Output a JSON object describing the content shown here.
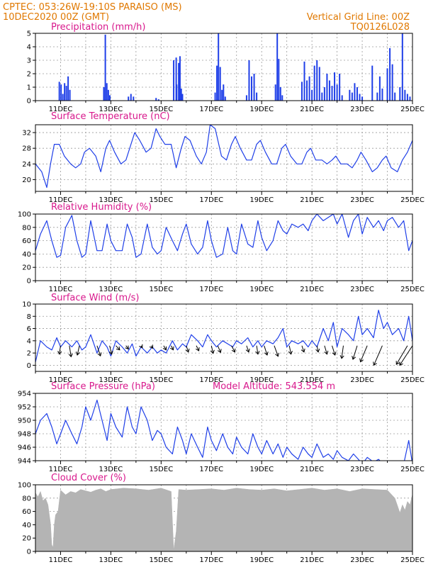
{
  "header": {
    "line1_left": "CPTEC:   053:26W-19:10S   PARAISO (MS)",
    "line2_left": "10DEC2020 00Z (GMT)",
    "line1_right": "Vertical Grid Line: 00Z",
    "line2_right": "TQ0126L028"
  },
  "colors": {
    "header": "#e07800",
    "title": "#d8188c",
    "series": "#1f3fe8",
    "cloud": "#b4b4b4"
  },
  "x_axis": {
    "labels": [
      "11DEC",
      "13DEC",
      "15DEC",
      "17DEC",
      "19DEC",
      "21DEC",
      "23DEC",
      "25DEC"
    ],
    "label_days": [
      11,
      13,
      15,
      17,
      19,
      21,
      23,
      25
    ],
    "range_days": [
      10,
      25
    ]
  },
  "chart_data": [
    {
      "id": "precip",
      "type": "bar",
      "title": "Precipitation (mm/h)",
      "ylim": [
        0,
        5
      ],
      "yticks": [
        0,
        1,
        2,
        3,
        4,
        5
      ],
      "x": [
        10.95,
        11.02,
        11.09,
        11.16,
        11.23,
        11.3,
        11.37,
        12.72,
        12.78,
        12.84,
        12.9,
        12.96,
        13.7,
        13.8,
        13.9,
        14.8,
        14.9,
        15.5,
        15.6,
        15.62,
        15.7,
        15.75,
        15.8,
        15.85,
        17.15,
        17.22,
        17.28,
        17.35,
        17.42,
        17.48,
        17.55,
        18.4,
        18.5,
        18.6,
        18.7,
        18.8,
        19.55,
        19.62,
        19.68,
        19.75,
        19.82,
        20.6,
        20.7,
        20.8,
        20.9,
        21.0,
        21.1,
        21.2,
        21.3,
        21.4,
        21.5,
        21.6,
        21.7,
        21.8,
        21.9,
        22.0,
        22.1,
        22.2,
        22.5,
        22.6,
        22.7,
        22.8,
        22.9,
        23.0,
        23.4,
        23.6,
        23.7,
        23.8,
        24.0,
        24.1,
        24.2,
        24.3,
        24.5,
        24.6,
        24.7,
        24.8,
        24.9
      ],
      "values": [
        1.4,
        1.2,
        0.5,
        1.3,
        1.1,
        1.8,
        0.8,
        1.0,
        4.9,
        1.3,
        0.8,
        0.4,
        0.3,
        0.5,
        0.3,
        0.2,
        0.1,
        3.0,
        3.2,
        1.2,
        2.8,
        3.3,
        0.9,
        0.5,
        0.6,
        2.6,
        5.0,
        2.5,
        0.8,
        1.2,
        0.3,
        0.4,
        3.0,
        1.8,
        2.0,
        0.6,
        1.2,
        5.0,
        3.1,
        1.0,
        0.4,
        1.4,
        2.9,
        1.5,
        1.8,
        0.8,
        2.6,
        3.0,
        2.5,
        0.6,
        1.0,
        2.0,
        1.5,
        1.1,
        2.1,
        1.2,
        2.0,
        0.4,
        0.8,
        0.6,
        1.3,
        1.0,
        0.5,
        0.3,
        2.6,
        0.6,
        1.8,
        0.9,
        2.4,
        3.9,
        2.7,
        0.6,
        1.0,
        5.0,
        0.8,
        0.5,
        0.3
      ]
    },
    {
      "id": "temp",
      "type": "line",
      "title": "Surface Temperature (nC)",
      "ylim": [
        17,
        34
      ],
      "yticks": [
        20,
        24,
        28,
        32
      ],
      "x": [
        10,
        10.25,
        10.45,
        10.6,
        10.75,
        10.95,
        11.15,
        11.4,
        11.6,
        11.8,
        11.95,
        12.15,
        12.4,
        12.6,
        12.8,
        12.95,
        13.15,
        13.4,
        13.6,
        13.8,
        13.95,
        14.15,
        14.4,
        14.6,
        14.8,
        14.95,
        15.15,
        15.4,
        15.6,
        15.8,
        15.95,
        16.15,
        16.4,
        16.6,
        16.8,
        16.95,
        17.15,
        17.4,
        17.6,
        17.8,
        17.95,
        18.15,
        18.4,
        18.6,
        18.8,
        18.95,
        19.15,
        19.4,
        19.6,
        19.8,
        19.95,
        20.15,
        20.4,
        20.6,
        20.8,
        20.95,
        21.15,
        21.4,
        21.6,
        21.8,
        21.95,
        22.15,
        22.4,
        22.6,
        22.8,
        22.95,
        23.15,
        23.4,
        23.6,
        23.8,
        23.95,
        24.15,
        24.4,
        24.6,
        24.8,
        25
      ],
      "values": [
        24,
        22,
        18,
        24,
        29,
        29,
        26,
        24,
        23,
        24,
        27,
        28,
        26,
        22,
        28,
        30,
        27,
        24,
        25,
        29,
        32,
        30,
        27,
        28,
        33,
        31,
        29,
        29,
        23,
        28,
        31,
        30,
        26,
        24,
        27,
        34,
        33,
        26,
        25,
        29,
        31,
        28,
        25,
        25,
        29,
        30,
        27,
        24,
        24,
        28,
        29,
        26,
        24,
        24,
        27,
        28,
        25,
        25,
        24,
        25,
        26,
        24,
        24,
        23,
        25,
        27,
        25,
        22,
        23,
        25,
        26,
        23,
        22,
        25,
        27,
        30
      ]
    },
    {
      "id": "rh",
      "type": "line",
      "title": "Relative Humidity (%)",
      "ylim": [
        0,
        100
      ],
      "yticks": [
        0,
        20,
        40,
        60,
        80,
        100
      ],
      "x": [
        10,
        10.2,
        10.45,
        10.65,
        10.85,
        11,
        11.2,
        11.45,
        11.65,
        11.85,
        12,
        12.2,
        12.45,
        12.65,
        12.85,
        13,
        13.2,
        13.45,
        13.65,
        13.85,
        14,
        14.2,
        14.45,
        14.65,
        14.85,
        15,
        15.2,
        15.45,
        15.65,
        15.85,
        16,
        16.2,
        16.45,
        16.65,
        16.85,
        17,
        17.2,
        17.45,
        17.65,
        17.85,
        18,
        18.2,
        18.45,
        18.65,
        18.85,
        19,
        19.2,
        19.45,
        19.65,
        19.85,
        20,
        20.2,
        20.45,
        20.65,
        20.85,
        21,
        21.2,
        21.45,
        21.65,
        21.85,
        22,
        22.2,
        22.45,
        22.65,
        22.85,
        23,
        23.2,
        23.45,
        23.65,
        23.85,
        24,
        24.2,
        24.45,
        24.65,
        24.85,
        25
      ],
      "values": [
        45,
        70,
        90,
        60,
        35,
        38,
        80,
        98,
        60,
        35,
        40,
        90,
        45,
        45,
        85,
        60,
        45,
        45,
        85,
        65,
        35,
        40,
        85,
        50,
        40,
        45,
        80,
        60,
        45,
        70,
        85,
        55,
        40,
        50,
        90,
        60,
        35,
        40,
        80,
        45,
        40,
        85,
        55,
        50,
        90,
        65,
        45,
        60,
        90,
        75,
        70,
        85,
        80,
        85,
        75,
        90,
        100,
        90,
        95,
        100,
        85,
        100,
        65,
        90,
        100,
        70,
        95,
        80,
        90,
        75,
        90,
        95,
        80,
        90,
        45,
        60
      ]
    },
    {
      "id": "wind",
      "type": "line",
      "title": "Surface Wind (m/s)",
      "ylim": [
        -1,
        10
      ],
      "yticks": [
        0,
        2,
        4,
        6,
        8,
        10
      ],
      "x": [
        10,
        10.2,
        10.45,
        10.65,
        10.85,
        11,
        11.2,
        11.45,
        11.65,
        11.85,
        12,
        12.2,
        12.45,
        12.65,
        12.85,
        13,
        13.2,
        13.45,
        13.65,
        13.85,
        14,
        14.2,
        14.45,
        14.65,
        14.85,
        15,
        15.2,
        15.45,
        15.65,
        15.85,
        16,
        16.2,
        16.45,
        16.65,
        16.85,
        17,
        17.2,
        17.45,
        17.65,
        17.85,
        18,
        18.2,
        18.45,
        18.65,
        18.85,
        19,
        19.2,
        19.45,
        19.65,
        19.85,
        20,
        20.2,
        20.45,
        20.65,
        20.85,
        21,
        21.2,
        21.45,
        21.65,
        21.85,
        22,
        22.2,
        22.45,
        22.65,
        22.85,
        23,
        23.2,
        23.45,
        23.65,
        23.85,
        24,
        24.2,
        24.45,
        24.65,
        24.85,
        25
      ],
      "values": [
        0.5,
        4,
        3,
        2.5,
        4.5,
        3,
        4,
        3,
        4,
        2.5,
        3,
        5,
        2,
        4,
        3,
        1.5,
        4,
        3,
        2,
        3.5,
        1.5,
        3,
        2,
        3,
        2,
        2.5,
        2,
        4,
        2.5,
        3.5,
        3,
        5,
        4,
        3,
        5,
        4,
        3,
        4,
        3.5,
        3,
        4,
        3.5,
        4.5,
        3,
        4,
        3,
        4,
        3.5,
        4.5,
        6,
        3,
        4,
        3.5,
        4,
        3,
        4,
        3,
        6,
        4,
        7,
        3,
        6,
        5,
        4,
        8,
        5,
        6,
        4.5,
        9,
        6,
        7,
        5,
        6,
        4,
        8,
        4
      ]
    },
    {
      "id": "pres",
      "type": "line",
      "title": "Surface Pressure (hPa)",
      "note": "Model Altitude: 543.554  m",
      "ylim": [
        944,
        954
      ],
      "yticks": [
        944,
        946,
        948,
        950,
        952,
        954
      ],
      "x": [
        10,
        10.2,
        10.45,
        10.65,
        10.85,
        11,
        11.2,
        11.45,
        11.65,
        11.85,
        12,
        12.2,
        12.45,
        12.65,
        12.85,
        13,
        13.2,
        13.45,
        13.65,
        13.85,
        14,
        14.2,
        14.45,
        14.65,
        14.85,
        15,
        15.2,
        15.45,
        15.65,
        15.85,
        16,
        16.2,
        16.45,
        16.65,
        16.85,
        17,
        17.2,
        17.45,
        17.65,
        17.85,
        18,
        18.2,
        18.45,
        18.65,
        18.85,
        19,
        19.2,
        19.45,
        19.65,
        19.85,
        20,
        20.2,
        20.45,
        20.65,
        20.85,
        21,
        21.2,
        21.45,
        21.65,
        21.85,
        22,
        22.2,
        22.45,
        22.65,
        22.85,
        23,
        23.2,
        23.45,
        23.65,
        23.85,
        24,
        24.2,
        24.45,
        24.65,
        24.85,
        25
      ],
      "values": [
        948,
        950,
        951,
        949,
        946.5,
        948,
        950,
        948,
        946.5,
        949,
        952,
        950,
        953,
        950,
        947,
        951,
        949,
        947.5,
        952,
        949,
        948,
        952,
        950,
        947,
        948.5,
        948,
        946,
        945,
        949,
        947,
        945,
        948,
        946,
        944.5,
        949,
        947,
        945.5,
        948,
        946,
        945,
        947.5,
        946,
        945,
        948,
        946,
        945,
        947,
        945,
        946.5,
        944.5,
        946,
        945,
        944.2,
        946,
        945,
        944.5,
        946.5,
        944.5,
        945,
        944.2,
        945.5,
        944.5,
        944,
        945,
        944.2,
        943.5,
        944.5,
        943.8,
        944.2,
        943.5,
        944,
        943.5,
        943.8,
        943.5,
        947,
        943.5
      ]
    },
    {
      "id": "cloud",
      "type": "bar",
      "title": "Cloud Cover (%)",
      "ylim": [
        0,
        100
      ],
      "yticks": [
        0,
        20,
        40,
        60,
        80,
        100
      ],
      "x": [
        10,
        10.1,
        10.2,
        10.3,
        10.4,
        10.5,
        10.6,
        10.65,
        10.7,
        10.75,
        10.8,
        10.9,
        11,
        11.2,
        11.4,
        11.6,
        11.8,
        12,
        12.2,
        12.4,
        12.6,
        12.8,
        13,
        13.5,
        14,
        14.5,
        15,
        15.4,
        15.5,
        15.6,
        15.7,
        16,
        16.5,
        17,
        17.5,
        18,
        18.5,
        19,
        19.5,
        20,
        20.5,
        21,
        21.5,
        22,
        22.5,
        23,
        23.5,
        24,
        24.3,
        24.5,
        24.6,
        24.7,
        24.8,
        24.9,
        25
      ],
      "values": [
        88,
        82,
        90,
        76,
        80,
        70,
        42,
        10,
        6,
        40,
        55,
        60,
        92,
        85,
        90,
        88,
        93,
        91,
        89,
        92,
        94,
        90,
        93,
        95,
        94,
        92,
        95,
        90,
        2,
        30,
        93,
        92,
        93,
        94,
        92,
        95,
        93,
        92,
        94,
        91,
        93,
        95,
        92,
        94,
        90,
        94,
        93,
        92,
        80,
        58,
        70,
        62,
        75,
        70,
        86
      ]
    }
  ],
  "wind_vectors": {
    "x": [
      11.0,
      11.35,
      11.75,
      12.45,
      12.95,
      13.2,
      13.6,
      14.2,
      14.6,
      15.1,
      15.4,
      16.0,
      16.4,
      17.0,
      17.25,
      17.8,
      18.4,
      18.8,
      19.1,
      19.5,
      20.1,
      20.6,
      21.2,
      21.5,
      21.8,
      22.25,
      22.8,
      23.2,
      23.8,
      24.8,
      25.0
    ],
    "u": [
      -0.3,
      0.4,
      -0.5,
      0.8,
      0.5,
      0.9,
      0.6,
      0.3,
      0.4,
      0.6,
      0.5,
      0.5,
      0.6,
      0.4,
      0.7,
      0.8,
      0.5,
      0.3,
      0.7,
      0.9,
      0.4,
      0.5,
      0.3,
      0.6,
      0.7,
      -0.4,
      -1.0,
      -1.6,
      -2.0,
      -2.6,
      -3.0
    ],
    "v": [
      -2.0,
      -2.6,
      -2.2,
      -2.4,
      -2.0,
      -1.0,
      -0.8,
      -0.5,
      -0.6,
      -1.0,
      -1.0,
      -1.5,
      -1.2,
      -1.8,
      -1.6,
      -1.5,
      -1.5,
      -2.0,
      -2.2,
      -2.5,
      -2.0,
      -1.5,
      -1.5,
      -2.0,
      -2.2,
      -3.0,
      -3.2,
      -3.8,
      -4.6,
      -4.4,
      -4.6
    ]
  }
}
